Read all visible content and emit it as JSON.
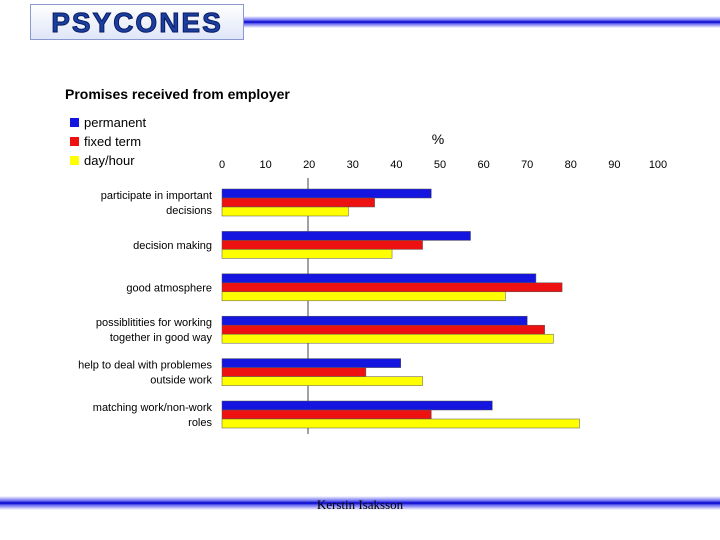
{
  "header": {
    "logo_text": "PSYCONES"
  },
  "footer": {
    "author": "Kerstin Isaksson"
  },
  "colors": {
    "permanent": "#1515e0",
    "fixed_term": "#ee1111",
    "day_hour": "#ffff00"
  },
  "chart_data": {
    "type": "bar",
    "orientation": "horizontal",
    "title": "Promises received from employer",
    "xlabel": "%",
    "xlim": [
      0,
      100
    ],
    "xticks": [
      "0",
      "10",
      "20",
      "30",
      "40",
      "50",
      "60",
      "70",
      "80",
      "90",
      "100"
    ],
    "categories": [
      [
        "participate in important",
        "decisions"
      ],
      [
        "decision making"
      ],
      [
        "good atmosphere"
      ],
      [
        "possiblitities for working",
        "together in good way"
      ],
      [
        "help to deal with problemes",
        "outside work"
      ],
      [
        "matching work/non-work",
        "roles"
      ]
    ],
    "series": [
      {
        "name": "permanent",
        "values": [
          48,
          57,
          72,
          70,
          41,
          62
        ]
      },
      {
        "name": "fixed term",
        "values": [
          35,
          46,
          78,
          74,
          33,
          48
        ]
      },
      {
        "name": "day/hour",
        "values": [
          29,
          39,
          65,
          76,
          46,
          82
        ]
      }
    ],
    "legend_position": "top-left"
  }
}
